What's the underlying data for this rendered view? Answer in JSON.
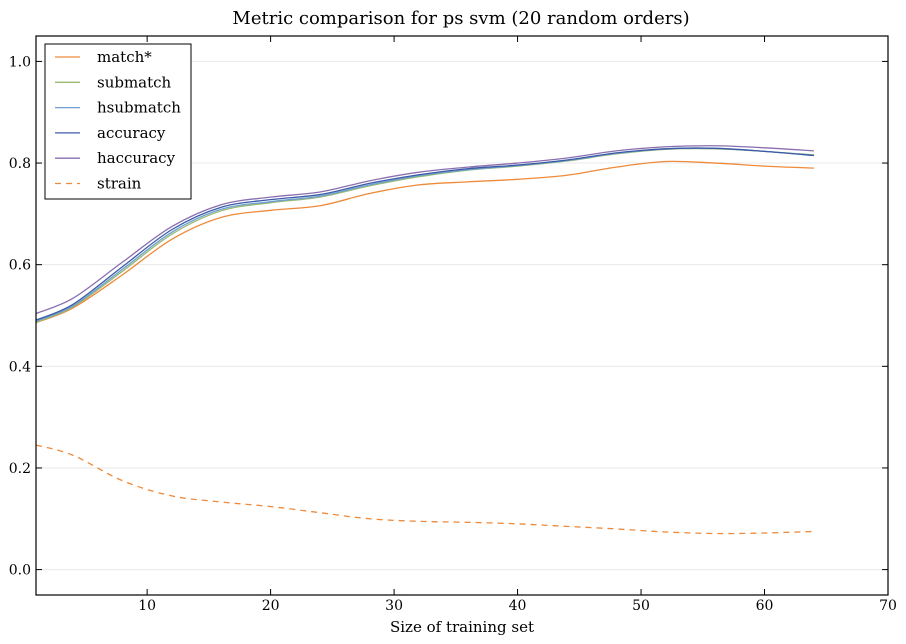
{
  "chart_data": {
    "type": "line",
    "title": "Metric comparison for ps svm (20 random orders)",
    "xlabel": "Size of training set",
    "ylabel": "",
    "xlim": [
      1,
      70
    ],
    "ylim": [
      -0.05,
      1.05
    ],
    "xticks": [
      "10",
      "20",
      "30",
      "40",
      "50",
      "60",
      "70"
    ],
    "yticks": [
      "0.0",
      "0.2",
      "0.4",
      "0.6",
      "0.8",
      "1.0"
    ],
    "grid": true,
    "legend_position": "top-left",
    "x": [
      1,
      4,
      8,
      12,
      16,
      20,
      24,
      28,
      32,
      36,
      40,
      44,
      48,
      52,
      56,
      60,
      64
    ],
    "series": [
      {
        "name": "match*",
        "color": "#ee8a3a",
        "dash": false,
        "values": [
          0.486,
          0.515,
          0.58,
          0.65,
          0.693,
          0.707,
          0.716,
          0.74,
          0.757,
          0.763,
          0.768,
          0.776,
          0.792,
          0.803,
          0.8,
          0.794,
          0.79
        ]
      },
      {
        "name": "submatch",
        "color": "#9ab973",
        "dash": false,
        "values": [
          0.487,
          0.517,
          0.587,
          0.66,
          0.706,
          0.722,
          0.733,
          0.755,
          0.773,
          0.786,
          0.794,
          0.804,
          0.818,
          0.827,
          0.828,
          0.823,
          0.816
        ]
      },
      {
        "name": "hsubmatch",
        "color": "#6b9fd0",
        "dash": false,
        "values": [
          0.489,
          0.519,
          0.591,
          0.664,
          0.709,
          0.724,
          0.735,
          0.757,
          0.775,
          0.787,
          0.795,
          0.805,
          0.819,
          0.828,
          0.829,
          0.823,
          0.815
        ]
      },
      {
        "name": "accuracy",
        "color": "#3c5aa8",
        "dash": false,
        "values": [
          0.491,
          0.522,
          0.596,
          0.669,
          0.713,
          0.728,
          0.738,
          0.76,
          0.777,
          0.789,
          0.796,
          0.806,
          0.82,
          0.828,
          0.829,
          0.823,
          0.815
        ]
      },
      {
        "name": "haccuracy",
        "color": "#8a6fb0",
        "dash": false,
        "values": [
          0.504,
          0.534,
          0.605,
          0.675,
          0.718,
          0.733,
          0.743,
          0.765,
          0.782,
          0.792,
          0.8,
          0.81,
          0.824,
          0.832,
          0.834,
          0.83,
          0.824
        ]
      },
      {
        "name": "strain",
        "color": "#ee8a3a",
        "dash": true,
        "values": [
          0.245,
          0.225,
          0.175,
          0.145,
          0.133,
          0.124,
          0.112,
          0.1,
          0.095,
          0.093,
          0.09,
          0.085,
          0.08,
          0.074,
          0.071,
          0.072,
          0.075
        ]
      }
    ]
  }
}
